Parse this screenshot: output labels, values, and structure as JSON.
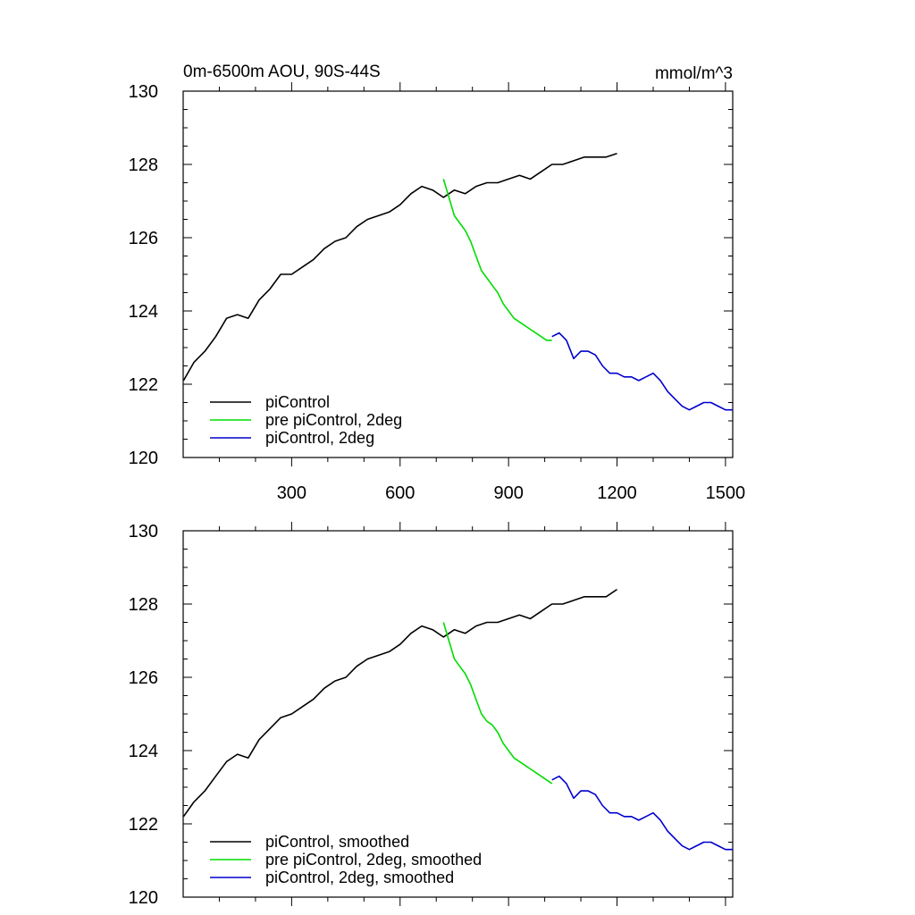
{
  "chart_data": [
    {
      "type": "line",
      "title": "0m-6500m AOU, 90S-44S",
      "units": "mmol/m^3",
      "xlim": [
        0,
        1520
      ],
      "ylim": [
        120,
        130
      ],
      "x_ticks": [
        300,
        600,
        900,
        1200,
        1500
      ],
      "x_tick_labels": [
        "300",
        "600",
        "900",
        "1200",
        "1500"
      ],
      "y_ticks": [
        120,
        122,
        124,
        126,
        128,
        130
      ],
      "y_tick_labels": [
        "120",
        "122",
        "124",
        "126",
        "128",
        "130"
      ],
      "legend_position": "bottom-left",
      "series": [
        {
          "name": "piControl",
          "color": "#000000",
          "points": [
            [
              1,
              122.1
            ],
            [
              30,
              122.6
            ],
            [
              60,
              122.9
            ],
            [
              90,
              123.3
            ],
            [
              120,
              123.8
            ],
            [
              150,
              123.9
            ],
            [
              180,
              123.8
            ],
            [
              210,
              124.3
            ],
            [
              240,
              124.6
            ],
            [
              270,
              125.0
            ],
            [
              300,
              125.0
            ],
            [
              330,
              125.2
            ],
            [
              360,
              125.4
            ],
            [
              390,
              125.7
            ],
            [
              420,
              125.9
            ],
            [
              450,
              126.0
            ],
            [
              480,
              126.3
            ],
            [
              510,
              126.5
            ],
            [
              540,
              126.6
            ],
            [
              570,
              126.7
            ],
            [
              600,
              126.9
            ],
            [
              630,
              127.2
            ],
            [
              660,
              127.4
            ],
            [
              690,
              127.3
            ],
            [
              720,
              127.1
            ],
            [
              750,
              127.3
            ],
            [
              780,
              127.2
            ],
            [
              810,
              127.4
            ],
            [
              840,
              127.5
            ],
            [
              870,
              127.5
            ],
            [
              900,
              127.6
            ],
            [
              930,
              127.7
            ],
            [
              960,
              127.6
            ],
            [
              990,
              127.8
            ],
            [
              1020,
              128.0
            ],
            [
              1050,
              128.0
            ],
            [
              1080,
              128.1
            ],
            [
              1110,
              128.2
            ],
            [
              1140,
              128.2
            ],
            [
              1170,
              128.2
            ],
            [
              1200,
              128.3
            ]
          ]
        },
        {
          "name": "pre piControl, 2deg",
          "color": "#00dd00",
          "points": [
            [
              720,
              127.6
            ],
            [
              735,
              127.1
            ],
            [
              750,
              126.6
            ],
            [
              765,
              126.4
            ],
            [
              780,
              126.2
            ],
            [
              795,
              125.9
            ],
            [
              810,
              125.5
            ],
            [
              825,
              125.1
            ],
            [
              840,
              124.9
            ],
            [
              855,
              124.7
            ],
            [
              870,
              124.5
            ],
            [
              885,
              124.2
            ],
            [
              900,
              124.0
            ],
            [
              915,
              123.8
            ],
            [
              930,
              123.7
            ],
            [
              945,
              123.6
            ],
            [
              960,
              123.5
            ],
            [
              975,
              123.4
            ],
            [
              990,
              123.3
            ],
            [
              1005,
              123.2
            ],
            [
              1020,
              123.2
            ]
          ]
        },
        {
          "name": "piControl, 2deg",
          "color": "#0000cc",
          "points": [
            [
              1020,
              123.3
            ],
            [
              1040,
              123.4
            ],
            [
              1060,
              123.2
            ],
            [
              1080,
              122.7
            ],
            [
              1100,
              122.9
            ],
            [
              1120,
              122.9
            ],
            [
              1140,
              122.8
            ],
            [
              1160,
              122.5
            ],
            [
              1180,
              122.3
            ],
            [
              1200,
              122.3
            ],
            [
              1220,
              122.2
            ],
            [
              1240,
              122.2
            ],
            [
              1260,
              122.1
            ],
            [
              1280,
              122.2
            ],
            [
              1300,
              122.3
            ],
            [
              1320,
              122.1
            ],
            [
              1340,
              121.8
            ],
            [
              1360,
              121.6
            ],
            [
              1380,
              121.4
            ],
            [
              1400,
              121.3
            ],
            [
              1420,
              121.4
            ],
            [
              1440,
              121.5
            ],
            [
              1460,
              121.5
            ],
            [
              1480,
              121.4
            ],
            [
              1500,
              121.3
            ],
            [
              1520,
              121.3
            ]
          ]
        }
      ]
    },
    {
      "type": "line",
      "xlim": [
        0,
        1520
      ],
      "ylim": [
        120,
        130
      ],
      "x_ticks": [
        300,
        600,
        900,
        1200,
        1500
      ],
      "y_ticks": [
        120,
        122,
        124,
        126,
        128,
        130
      ],
      "y_tick_labels": [
        "120",
        "122",
        "124",
        "126",
        "128",
        "130"
      ],
      "legend_position": "bottom-left",
      "series": [
        {
          "name": "piControl, smoothed",
          "color": "#000000",
          "points": [
            [
              1,
              122.2
            ],
            [
              30,
              122.6
            ],
            [
              60,
              122.9
            ],
            [
              90,
              123.3
            ],
            [
              120,
              123.7
            ],
            [
              150,
              123.9
            ],
            [
              180,
              123.8
            ],
            [
              210,
              124.3
            ],
            [
              240,
              124.6
            ],
            [
              270,
              124.9
            ],
            [
              300,
              125.0
            ],
            [
              330,
              125.2
            ],
            [
              360,
              125.4
            ],
            [
              390,
              125.7
            ],
            [
              420,
              125.9
            ],
            [
              450,
              126.0
            ],
            [
              480,
              126.3
            ],
            [
              510,
              126.5
            ],
            [
              540,
              126.6
            ],
            [
              570,
              126.7
            ],
            [
              600,
              126.9
            ],
            [
              630,
              127.2
            ],
            [
              660,
              127.4
            ],
            [
              690,
              127.3
            ],
            [
              720,
              127.1
            ],
            [
              750,
              127.3
            ],
            [
              780,
              127.2
            ],
            [
              810,
              127.4
            ],
            [
              840,
              127.5
            ],
            [
              870,
              127.5
            ],
            [
              900,
              127.6
            ],
            [
              930,
              127.7
            ],
            [
              960,
              127.6
            ],
            [
              990,
              127.8
            ],
            [
              1020,
              128.0
            ],
            [
              1050,
              128.0
            ],
            [
              1080,
              128.1
            ],
            [
              1110,
              128.2
            ],
            [
              1140,
              128.2
            ],
            [
              1170,
              128.2
            ],
            [
              1200,
              128.4
            ]
          ]
        },
        {
          "name": "pre piControl, 2deg, smoothed",
          "color": "#00dd00",
          "points": [
            [
              720,
              127.5
            ],
            [
              735,
              127.0
            ],
            [
              750,
              126.5
            ],
            [
              765,
              126.3
            ],
            [
              780,
              126.1
            ],
            [
              795,
              125.8
            ],
            [
              810,
              125.4
            ],
            [
              825,
              125.0
            ],
            [
              840,
              124.8
            ],
            [
              855,
              124.7
            ],
            [
              870,
              124.5
            ],
            [
              885,
              124.2
            ],
            [
              900,
              124.0
            ],
            [
              915,
              123.8
            ],
            [
              930,
              123.7
            ],
            [
              945,
              123.6
            ],
            [
              960,
              123.5
            ],
            [
              975,
              123.4
            ],
            [
              990,
              123.3
            ],
            [
              1005,
              123.2
            ],
            [
              1020,
              123.1
            ]
          ]
        },
        {
          "name": "piControl, 2deg, smoothed",
          "color": "#0000cc",
          "points": [
            [
              1020,
              123.2
            ],
            [
              1040,
              123.3
            ],
            [
              1060,
              123.1
            ],
            [
              1080,
              122.7
            ],
            [
              1100,
              122.9
            ],
            [
              1120,
              122.9
            ],
            [
              1140,
              122.8
            ],
            [
              1160,
              122.5
            ],
            [
              1180,
              122.3
            ],
            [
              1200,
              122.3
            ],
            [
              1220,
              122.2
            ],
            [
              1240,
              122.2
            ],
            [
              1260,
              122.1
            ],
            [
              1280,
              122.2
            ],
            [
              1300,
              122.3
            ],
            [
              1320,
              122.1
            ],
            [
              1340,
              121.8
            ],
            [
              1360,
              121.6
            ],
            [
              1380,
              121.4
            ],
            [
              1400,
              121.3
            ],
            [
              1420,
              121.4
            ],
            [
              1440,
              121.5
            ],
            [
              1460,
              121.5
            ],
            [
              1480,
              121.4
            ],
            [
              1500,
              121.3
            ],
            [
              1520,
              121.3
            ]
          ]
        }
      ]
    }
  ]
}
